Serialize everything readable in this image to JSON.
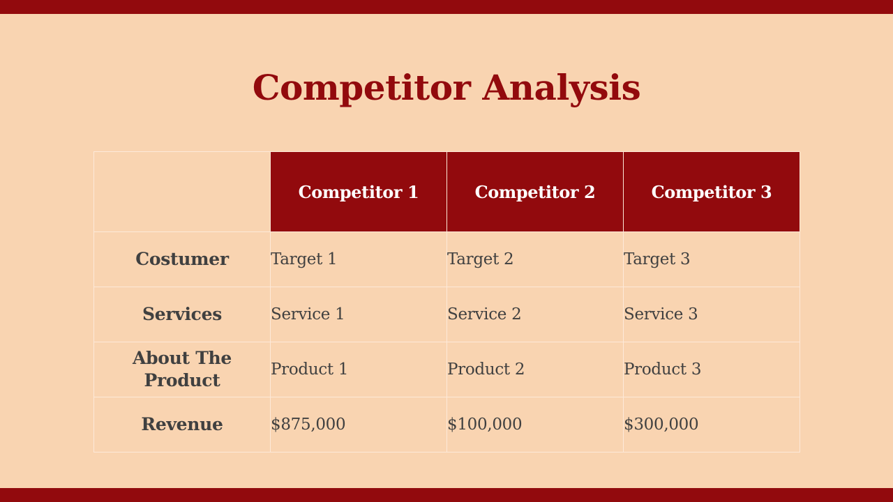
{
  "slide": {
    "title": "Competitor Analysis"
  },
  "table": {
    "headers": [
      "",
      "Competitor 1",
      "Competitor 2",
      "Competitor 3"
    ],
    "rows": [
      {
        "label": "Costumer",
        "cells": [
          "Target 1",
          "Target 2",
          "Target 3"
        ]
      },
      {
        "label": "Services",
        "cells": [
          "Service 1",
          "Service 2",
          "Service 3"
        ]
      },
      {
        "label": "About The Product",
        "cells": [
          "Product 1",
          "Product 2",
          "Product 3"
        ]
      },
      {
        "label": "Revenue",
        "cells": [
          "$875,000",
          "$100,000",
          "$300,000"
        ]
      }
    ]
  },
  "colors": {
    "accent": "#920a0d",
    "background": "#f9d4b1",
    "text": "#404040",
    "header_text": "#ffffff",
    "grid_line": "#fde9d9"
  }
}
